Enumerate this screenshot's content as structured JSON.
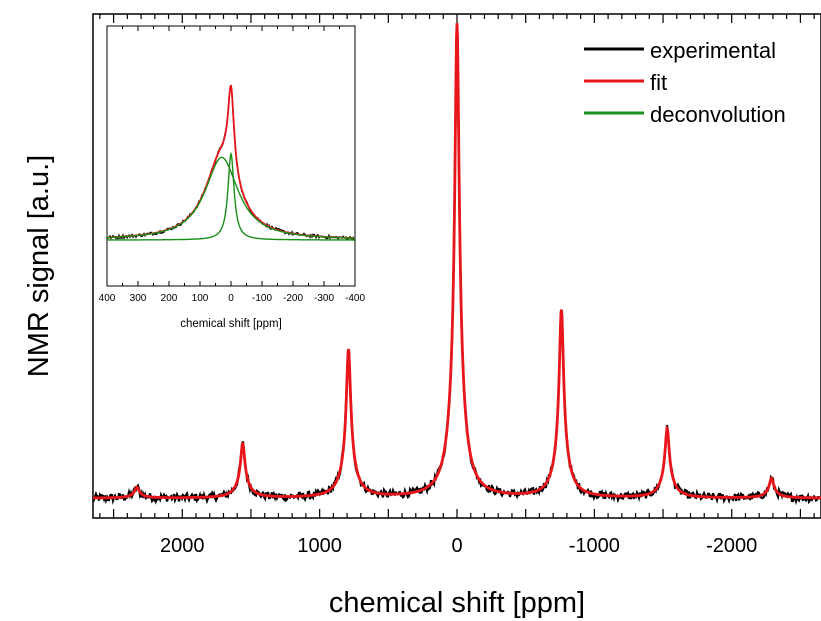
{
  "chart_data": [
    {
      "type": "line",
      "title": "",
      "xlabel": "chemical shift [ppm]",
      "ylabel": "NMR signal [a.u.]",
      "xlim": [
        2650,
        -2650
      ],
      "x_reversed": true,
      "ylim": [
        -0.02,
        1.0
      ],
      "y_ticks_labeled": false,
      "x_ticks": [
        "2000",
        "1000",
        "0",
        "-1000",
        "-2000"
      ],
      "x_tick_values": [
        2000,
        1000,
        0,
        -1000,
        -2000
      ],
      "legend": {
        "placement": "top-right",
        "entries": [
          "experimental",
          "fit",
          "deconvolution"
        ]
      },
      "series": [
        {
          "name": "experimental",
          "color": "#000000",
          "model": "spinning sidebands (Lorentzian peaks on flat baseline, with noise)",
          "baseline": 0.02,
          "peaks": [
            {
              "x": 2330,
              "height": 0.022
            },
            {
              "x": 1560,
              "height": 0.11
            },
            {
              "x": 790,
              "height": 0.3
            },
            {
              "x": 0,
              "height": 0.96
            },
            {
              "x": -760,
              "height": 0.38
            },
            {
              "x": -1530,
              "height": 0.14
            },
            {
              "x": -2290,
              "height": 0.04
            }
          ]
        },
        {
          "name": "fit",
          "color": "#e8161b",
          "model": "sum of Lorentzian peaks",
          "peaks": [
            {
              "x": 2330,
              "height": 0.022
            },
            {
              "x": 1560,
              "height": 0.11
            },
            {
              "x": 790,
              "height": 0.3
            },
            {
              "x": 0,
              "height": 0.96
            },
            {
              "x": -760,
              "height": 0.38
            },
            {
              "x": -1530,
              "height": 0.14
            },
            {
              "x": -2290,
              "height": 0.04
            }
          ]
        }
      ]
    },
    {
      "type": "line",
      "title": "",
      "xlabel": "chemical shift [ppm]",
      "ylabel": "",
      "xlim": [
        400,
        -400
      ],
      "x_reversed": true,
      "ylim": [
        0,
        1
      ],
      "x_ticks": [
        "400",
        "300",
        "200",
        "100",
        "0",
        "-100",
        "-200",
        "-300",
        "-400"
      ],
      "x_tick_values": [
        400,
        300,
        200,
        100,
        0,
        -100,
        -200,
        -300,
        -400
      ],
      "series": [
        {
          "name": "experimental",
          "color": "#000000",
          "components": [
            {
              "center": 30,
              "height": 0.48,
              "width": 65
            },
            {
              "center": 0,
              "height": 0.5,
              "width": 12
            }
          ]
        },
        {
          "name": "fit",
          "color": "#e8161b",
          "components": [
            {
              "center": 30,
              "height": 0.48,
              "width": 65
            },
            {
              "center": 0,
              "height": 0.5,
              "width": 12
            }
          ]
        },
        {
          "name": "deconvolution",
          "color": "#1a8f1a",
          "components": [
            {
              "center": 30,
              "height": 0.48,
              "width": 65
            },
            {
              "center": 0,
              "height": 0.5,
              "width": 12
            }
          ]
        }
      ]
    }
  ]
}
